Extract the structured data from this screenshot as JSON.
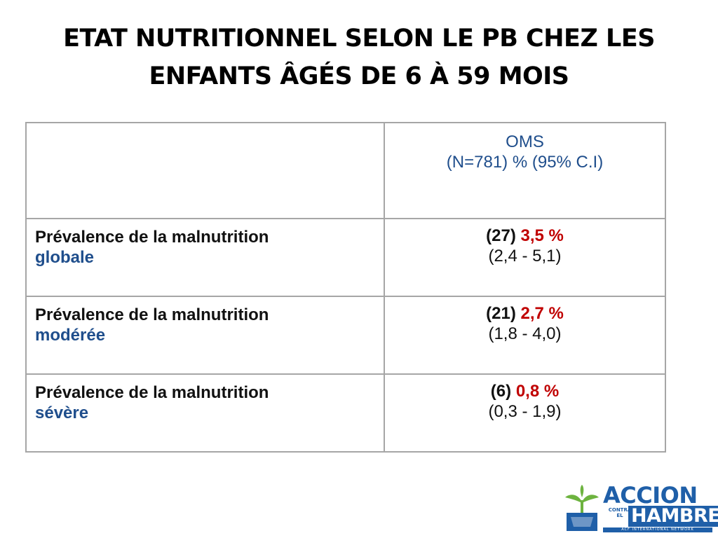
{
  "title": {
    "line1": "ETAT NUTRITIONNEL SELON LE PB CHEZ LES",
    "line2": "ENFANTS ÂGÉS DE 6 À 59 MOIS"
  },
  "table": {
    "header": {
      "label": "",
      "value_line1": "OMS",
      "value_line2": "(N=781) %  (95% C.I)"
    },
    "rows": [
      {
        "label": "Prévalence de la malnutrition",
        "label_highlight": "globale",
        "count": "(27)",
        "percent": "3,5 %",
        "ci": "(2,4 - 5,1)"
      },
      {
        "label": "Prévalence de la malnutrition",
        "label_highlight": "modérée",
        "count": "(21)",
        "percent": "2,7 %",
        "ci": "(1,8 - 4,0)"
      },
      {
        "label": "Prévalence de la malnutrition",
        "label_highlight": "sévère",
        "count": "(6)",
        "percent": "0,8 %",
        "ci": "(0,3 - 1,9)"
      }
    ]
  },
  "logo": {
    "icon": "plant-hand-logo-icon",
    "line1": "ACCION",
    "sub": "CONTRA EL",
    "line2": "HAMBRE",
    "tagline": "ACF INTERNATIONAL NETWORK"
  },
  "colors": {
    "highlight_blue": "#1f4e8c",
    "percent_red": "#c00000",
    "border_gray": "#a6a6a6",
    "logo_blue": "#1f5fa8",
    "logo_green": "#6db33f"
  }
}
